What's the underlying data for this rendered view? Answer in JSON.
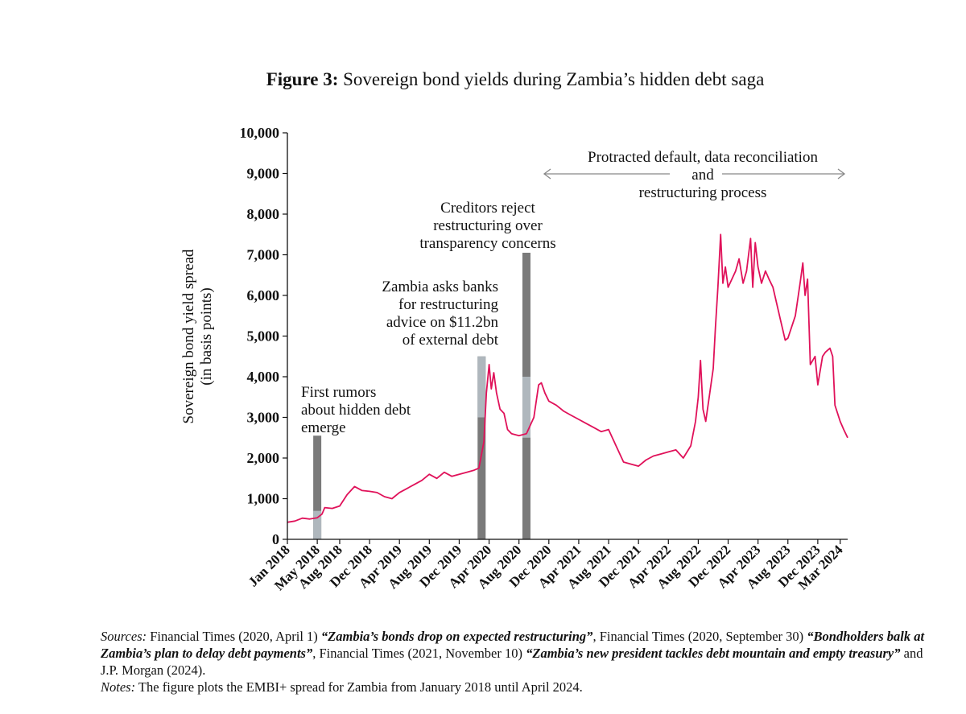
{
  "title": {
    "prefix": "Figure 3:",
    "text": "Sovereign bond yields during Zambia’s hidden debt saga"
  },
  "chart_data": {
    "type": "line",
    "ylabel": "Sovereign bond yield spread (in basis points)",
    "ylabel_lines": [
      "Sovereign bond yield spread",
      "(in basis points)"
    ],
    "ylim": [
      0,
      10000
    ],
    "y_ticks": [
      0,
      1000,
      2000,
      3000,
      4000,
      5000,
      6000,
      7000,
      8000,
      9000,
      10000
    ],
    "y_tick_labels": [
      "0",
      "1,000",
      "2,000",
      "3,000",
      "4,000",
      "5,000",
      "6,000",
      "7,000",
      "8,000",
      "9,000",
      "10,000"
    ],
    "xlim": [
      "2018-01",
      "2024-04"
    ],
    "x_ticks": [
      "2018-01",
      "2018-05",
      "2018-08",
      "2018-12",
      "2019-04",
      "2019-08",
      "2019-12",
      "2020-04",
      "2020-08",
      "2020-12",
      "2021-04",
      "2021-08",
      "2021-12",
      "2022-04",
      "2022-08",
      "2022-12",
      "2023-04",
      "2023-08",
      "2023-12",
      "2024-03"
    ],
    "x_tick_labels": [
      "Jan 2018",
      "May 2018",
      "Aug 2018",
      "Dec 2018",
      "Apr 2019",
      "Aug 2019",
      "Dec 2019",
      "Apr 2020",
      "Aug 2020",
      "Dec 2020",
      "Apr 2021",
      "Aug 2021",
      "Dec 2021",
      "Apr 2022",
      "Aug 2022",
      "Dec 2022",
      "Apr 2023",
      "Aug 2023",
      "Dec 2023",
      "Mar 2024"
    ],
    "series": [
      {
        "color": "#e0125a",
        "points": [
          [
            "2018-01",
            420
          ],
          [
            "2018-02",
            450
          ],
          [
            "2018-03",
            520
          ],
          [
            "2018-04",
            500
          ],
          [
            "2018-05",
            530
          ],
          [
            "2018-05-20",
            620
          ],
          [
            "2018-06",
            780
          ],
          [
            "2018-07",
            760
          ],
          [
            "2018-08",
            820
          ],
          [
            "2018-09",
            1100
          ],
          [
            "2018-10",
            1300
          ],
          [
            "2018-11",
            1200
          ],
          [
            "2018-12",
            1180
          ],
          [
            "2019-01",
            1150
          ],
          [
            "2019-02",
            1050
          ],
          [
            "2019-03",
            1000
          ],
          [
            "2019-04",
            1150
          ],
          [
            "2019-05",
            1250
          ],
          [
            "2019-06",
            1350
          ],
          [
            "2019-07",
            1450
          ],
          [
            "2019-08",
            1600
          ],
          [
            "2019-09",
            1500
          ],
          [
            "2019-10",
            1650
          ],
          [
            "2019-11",
            1550
          ],
          [
            "2019-12",
            1600
          ],
          [
            "2020-01",
            1650
          ],
          [
            "2020-02",
            1700
          ],
          [
            "2020-02-20",
            1750
          ],
          [
            "2020-03-10",
            2400
          ],
          [
            "2020-03-20",
            3600
          ],
          [
            "2020-04",
            4300
          ],
          [
            "2020-04-10",
            3700
          ],
          [
            "2020-04-20",
            4100
          ],
          [
            "2020-05",
            3600
          ],
          [
            "2020-05-15",
            3200
          ],
          [
            "2020-06",
            3100
          ],
          [
            "2020-06-15",
            2700
          ],
          [
            "2020-07",
            2600
          ],
          [
            "2020-08",
            2550
          ],
          [
            "2020-09",
            2600
          ],
          [
            "2020-10",
            3000
          ],
          [
            "2020-10-20",
            3800
          ],
          [
            "2020-11",
            3850
          ],
          [
            "2020-11-15",
            3600
          ],
          [
            "2020-12",
            3400
          ],
          [
            "2021-01",
            3300
          ],
          [
            "2021-02",
            3150
          ],
          [
            "2021-03",
            3050
          ],
          [
            "2021-04",
            2950
          ],
          [
            "2021-05",
            2850
          ],
          [
            "2021-06",
            2750
          ],
          [
            "2021-07",
            2650
          ],
          [
            "2021-08",
            2700
          ],
          [
            "2021-09",
            2300
          ],
          [
            "2021-10",
            1900
          ],
          [
            "2021-11",
            1850
          ],
          [
            "2021-12",
            1800
          ],
          [
            "2022-01",
            1950
          ],
          [
            "2022-02",
            2050
          ],
          [
            "2022-03",
            2100
          ],
          [
            "2022-04",
            2150
          ],
          [
            "2022-05",
            2200
          ],
          [
            "2022-06",
            2000
          ],
          [
            "2022-07",
            2300
          ],
          [
            "2022-07-20",
            2900
          ],
          [
            "2022-08",
            3500
          ],
          [
            "2022-08-10",
            4400
          ],
          [
            "2022-08-20",
            3200
          ],
          [
            "2022-09",
            2900
          ],
          [
            "2022-09-15",
            3500
          ],
          [
            "2022-10",
            4200
          ],
          [
            "2022-10-10",
            5200
          ],
          [
            "2022-10-20",
            6200
          ],
          [
            "2022-11",
            7500
          ],
          [
            "2022-11-10",
            6300
          ],
          [
            "2022-11-20",
            6700
          ],
          [
            "2022-12",
            6200
          ],
          [
            "2023-01",
            6600
          ],
          [
            "2023-01-15",
            6900
          ],
          [
            "2023-02",
            6300
          ],
          [
            "2023-02-15",
            6600
          ],
          [
            "2023-03",
            7400
          ],
          [
            "2023-03-10",
            6200
          ],
          [
            "2023-03-20",
            7300
          ],
          [
            "2023-04",
            6700
          ],
          [
            "2023-04-15",
            6300
          ],
          [
            "2023-05",
            6600
          ],
          [
            "2023-05-15",
            6400
          ],
          [
            "2023-06",
            6200
          ],
          [
            "2023-07",
            5400
          ],
          [
            "2023-07-20",
            4900
          ],
          [
            "2023-08",
            4950
          ],
          [
            "2023-09",
            5500
          ],
          [
            "2023-09-20",
            6300
          ],
          [
            "2023-10",
            6800
          ],
          [
            "2023-10-10",
            6000
          ],
          [
            "2023-10-20",
            6400
          ],
          [
            "2023-11",
            4300
          ],
          [
            "2023-11-20",
            4500
          ],
          [
            "2023-12",
            3800
          ],
          [
            "2023-12-20",
            4500
          ],
          [
            "2024-01",
            4600
          ],
          [
            "2024-01-20",
            4700
          ],
          [
            "2024-02",
            4500
          ],
          [
            "2024-02-10",
            3300
          ],
          [
            "2024-03",
            2900
          ],
          [
            "2024-03-15",
            2700
          ],
          [
            "2024-04",
            2500
          ]
        ]
      }
    ],
    "event_bars": [
      {
        "date": "2018-05",
        "top": 2550,
        "light_from": 0,
        "light_to": 700
      },
      {
        "date": "2020-03",
        "top": 4500,
        "light_from": 3000,
        "light_to": 4500
      },
      {
        "date": "2020-09",
        "top": 7050,
        "light_from": 2500,
        "light_to": 4000
      }
    ],
    "annotations": [
      {
        "lines": [
          "First rumors",
          "about hidden debt",
          "emerge"
        ]
      },
      {
        "lines": [
          "Zambia asks banks",
          "for restructuring",
          "advice on $11.2bn",
          "of external debt"
        ]
      },
      {
        "lines": [
          "Creditors reject",
          "restructuring over",
          "transparency concerns"
        ]
      },
      {
        "lines": [
          "Protracted default, data reconciliation",
          "and",
          "restructuring process"
        ]
      }
    ],
    "grid": false,
    "legend": "none"
  },
  "sources": {
    "sources_label": "Sources:",
    "s1": "Financial Times (2020, April 1)",
    "s1_title": "“Zambia’s bonds drop on expected restructuring”",
    "s1_sep": ", Financial Times (2020,",
    "s2": "September 30)",
    "s2_title": "“Bondholders balk at Zambia’s plan to delay debt payments”",
    "s2_sep": ", Financial Times (2021, November 10)",
    "s3_title": "“Zambia’s new president tackles debt mountain and empty treasury”",
    "s3_sep": " and J.P. Morgan (2024).",
    "notes_label": "Notes:",
    "notes": "The figure plots the EMBI+ spread for Zambia from January 2018 until April 2024."
  },
  "colors": {
    "line": "#e0125a",
    "bar_dark": "#7a7a7a",
    "bar_light": "#b9c2c9"
  }
}
